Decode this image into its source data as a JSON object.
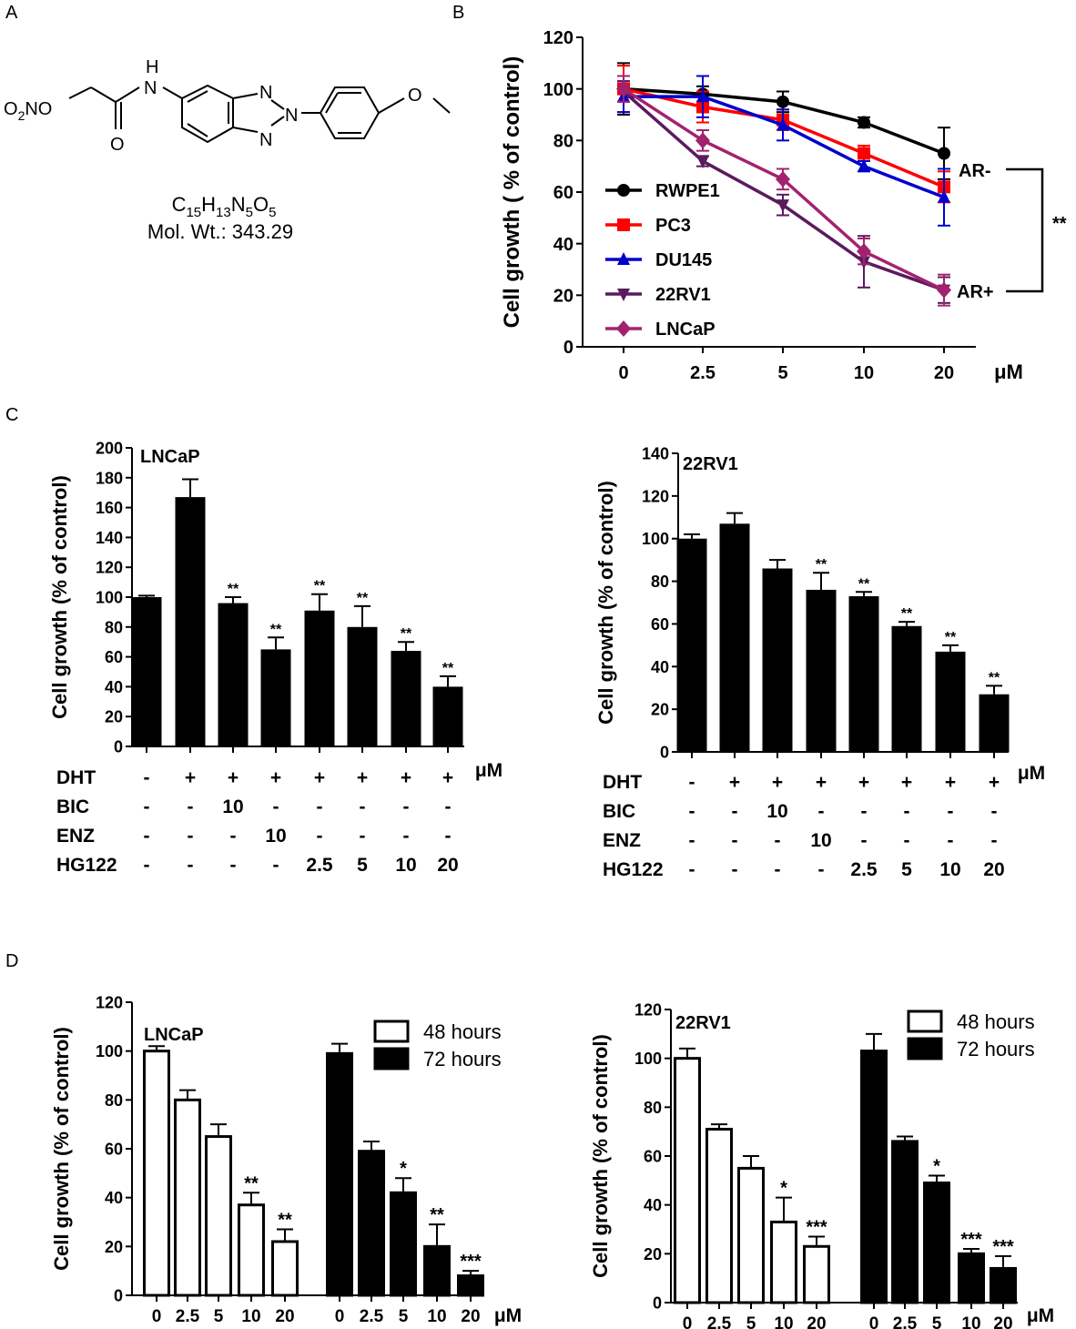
{
  "panels": {
    "a": {
      "letter": "A",
      "formula_parts": [
        "C",
        "15",
        "H",
        "13",
        "N",
        "5",
        "O",
        "5"
      ],
      "mol_wt": "Mol. Wt.: 343.29",
      "atoms": {
        "h": "H",
        "n_amide": "N",
        "o_carbonyl": "O",
        "n1": "N",
        "n2": "N",
        "n3": "N",
        "o_methoxy": "O",
        "o2no": [
          "O",
          "2",
          "NO"
        ]
      }
    },
    "b": {
      "letter": "B"
    },
    "c": {
      "letter": "C"
    },
    "d": {
      "letter": "D"
    }
  },
  "chart_data": [
    {
      "id": "B",
      "type": "line",
      "ylabel": "Cell growth ( % of control)",
      "ylim": [
        0,
        120
      ],
      "yticks": [
        "0",
        "20",
        "40",
        "60",
        "80",
        "100",
        "120"
      ],
      "categories": [
        "0",
        "2.5",
        "5",
        "10",
        "20"
      ],
      "unit": "μM",
      "series": [
        {
          "name": "RWPE1",
          "color": "#000000",
          "marker": "circle",
          "values": [
            100,
            98,
            95,
            87,
            75
          ],
          "errors": [
            10,
            3,
            4,
            2,
            10
          ]
        },
        {
          "name": "PC3",
          "color": "#ff0000",
          "marker": "square",
          "values": [
            100,
            93,
            88,
            75,
            62
          ],
          "errors": [
            9,
            6,
            4,
            3,
            6
          ]
        },
        {
          "name": "DU145",
          "color": "#0000cc",
          "marker": "triangle",
          "values": [
            97,
            97,
            86,
            70,
            58
          ],
          "errors": [
            6,
            8,
            6,
            2,
            11
          ]
        },
        {
          "name": "22RV1",
          "color": "#5b1a5f",
          "marker": "triangle-down",
          "values": [
            99,
            72,
            55,
            33,
            22
          ],
          "errors": [
            4,
            2,
            4,
            10,
            5
          ]
        },
        {
          "name": "LNCaP",
          "color": "#a3226f",
          "marker": "diamond",
          "values": [
            100,
            80,
            65,
            37,
            22
          ],
          "errors": [
            5,
            4,
            4,
            5,
            6
          ]
        }
      ],
      "annotations": {
        "ar_neg": "AR-",
        "ar_pos": "AR+",
        "significance": "**"
      }
    },
    {
      "id": "C-LNCaP",
      "type": "bar",
      "title": "LNCaP",
      "ylabel": "Cell growth (% of control)",
      "ylim": [
        0,
        200
      ],
      "yticks": [
        "0",
        "20",
        "40",
        "60",
        "80",
        "100",
        "120",
        "140",
        "160",
        "180",
        "200"
      ],
      "values": [
        100,
        167,
        96,
        65,
        91,
        80,
        64,
        40
      ],
      "errors": [
        1,
        12,
        4,
        8,
        11,
        14,
        6,
        7
      ],
      "stars": [
        "",
        "",
        "**",
        "**",
        "**",
        "**",
        "**",
        "**"
      ],
      "unit": "μM",
      "rows": [
        {
          "label": "DHT",
          "cells": [
            "-",
            "+",
            "+",
            "+",
            "+",
            "+",
            "+",
            "+"
          ]
        },
        {
          "label": "BIC",
          "cells": [
            "-",
            "-",
            "10",
            "-",
            "-",
            "-",
            "-",
            "-"
          ]
        },
        {
          "label": "ENZ",
          "cells": [
            "-",
            "-",
            "-",
            "10",
            "-",
            "-",
            "-",
            "-"
          ]
        },
        {
          "label": "HG122",
          "cells": [
            "-",
            "-",
            "-",
            "-",
            "2.5",
            "5",
            "10",
            "20"
          ]
        }
      ]
    },
    {
      "id": "C-22RV1",
      "type": "bar",
      "title": "22RV1",
      "ylabel": "Cell growth (% of control)",
      "ylim": [
        0,
        140
      ],
      "yticks": [
        "0",
        "20",
        "40",
        "60",
        "80",
        "100",
        "120",
        "140"
      ],
      "values": [
        100,
        107,
        86,
        76,
        73,
        59,
        47,
        27
      ],
      "errors": [
        2,
        5,
        4,
        8,
        2,
        2,
        3,
        4
      ],
      "stars": [
        "",
        "",
        "",
        "**",
        "**",
        "**",
        "**",
        "**"
      ],
      "unit": "μM",
      "rows": [
        {
          "label": "DHT",
          "cells": [
            "-",
            "+",
            "+",
            "+",
            "+",
            "+",
            "+",
            "+"
          ]
        },
        {
          "label": "BIC",
          "cells": [
            "-",
            "-",
            "10",
            "-",
            "-",
            "-",
            "-",
            "-"
          ]
        },
        {
          "label": "ENZ",
          "cells": [
            "-",
            "-",
            "-",
            "10",
            "-",
            "-",
            "-",
            "-"
          ]
        },
        {
          "label": "HG122",
          "cells": [
            "-",
            "-",
            "-",
            "-",
            "2.5",
            "5",
            "10",
            "20"
          ]
        }
      ]
    },
    {
      "id": "D-LNCaP",
      "type": "bar",
      "title": "LNCaP",
      "ylabel": "Cell growth (% of control)",
      "ylim": [
        0,
        120
      ],
      "yticks": [
        "0",
        "20",
        "40",
        "60",
        "80",
        "100",
        "120"
      ],
      "categories": [
        "0",
        "2.5",
        "5",
        "10",
        "20"
      ],
      "unit": "μM",
      "legend": [
        "48 hours",
        "72 hours"
      ],
      "series": [
        {
          "name": "48 hours",
          "fill": "#ffffff",
          "values": [
            100,
            80,
            65,
            37,
            22
          ],
          "errors": [
            2,
            4,
            5,
            5,
            5
          ],
          "stars": [
            "",
            "",
            "",
            "**",
            "**"
          ]
        },
        {
          "name": "72 hours",
          "fill": "#000000",
          "values": [
            99,
            59,
            42,
            20,
            8
          ],
          "errors": [
            4,
            4,
            6,
            9,
            2
          ],
          "stars": [
            "",
            "",
            "*",
            "**",
            "***"
          ]
        }
      ]
    },
    {
      "id": "D-22RV1",
      "type": "bar",
      "title": "22RV1",
      "ylabel": "Cell growth (% of control)",
      "ylim": [
        0,
        120
      ],
      "yticks": [
        "0",
        "20",
        "40",
        "60",
        "80",
        "100",
        "120"
      ],
      "categories": [
        "0",
        "2.5",
        "5",
        "10",
        "20"
      ],
      "unit": "μM",
      "legend": [
        "48 hours",
        "72 hours"
      ],
      "series": [
        {
          "name": "48 hours",
          "fill": "#ffffff",
          "values": [
            100,
            71,
            55,
            33,
            23
          ],
          "errors": [
            4,
            2,
            5,
            10,
            4
          ],
          "stars": [
            "",
            "",
            "",
            "*",
            "***"
          ]
        },
        {
          "name": "72 hours",
          "fill": "#000000",
          "values": [
            103,
            66,
            49,
            20,
            14
          ],
          "errors": [
            7,
            2,
            3,
            2,
            5
          ],
          "stars": [
            "",
            "",
            "*",
            "***",
            "***"
          ]
        }
      ]
    }
  ]
}
